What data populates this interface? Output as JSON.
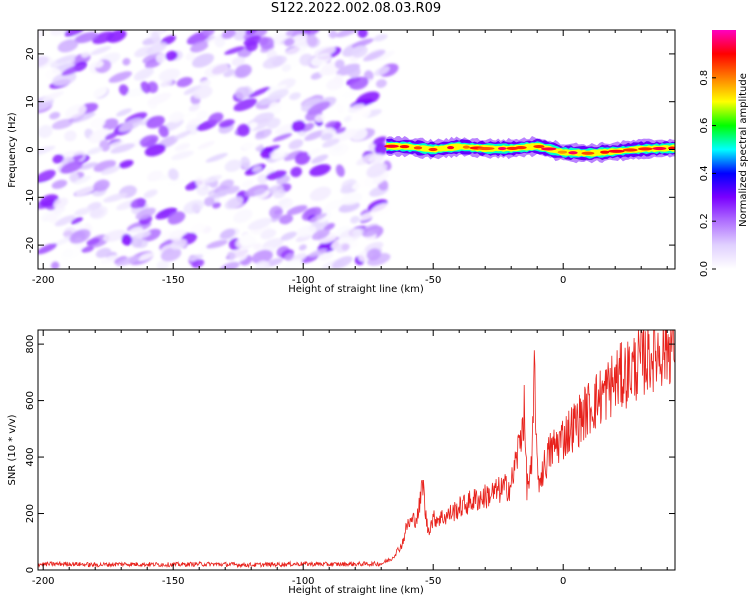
{
  "page": {
    "title": "S122.2022.002.08.03.R09"
  },
  "chart_data": [
    {
      "type": "heatmap",
      "xlabel": "Height of straight line (km)",
      "ylabel": "Frequency (Hz)",
      "xlim": [
        -202,
        43
      ],
      "ylim": [
        -25,
        25
      ],
      "x_ticks": [
        -200,
        -150,
        -100,
        -50,
        0
      ],
      "x_tick_labels": [
        "-200",
        "-150",
        "-100",
        "-50",
        "0"
      ],
      "y_ticks": [
        20,
        10,
        0,
        -10,
        -20
      ],
      "y_tick_labels": [
        "20",
        "10",
        "0",
        "-10",
        "-20"
      ],
      "noise_region": {
        "x_start": -202,
        "x_end": -67,
        "freq_range": [
          -25,
          25
        ],
        "peak_amplitude": 0.3
      },
      "signal_onset_km": -67,
      "signal_track": {
        "x": [
          -68,
          -60,
          -50,
          -40,
          -30,
          -20,
          -10,
          0,
          10,
          20,
          30,
          43
        ],
        "freq": [
          0.7,
          0.6,
          0.0,
          0.6,
          0.2,
          0.2,
          0.7,
          -0.6,
          -0.8,
          -0.4,
          0.1,
          0.3
        ],
        "peak_amplitude": 0.95
      },
      "colorbar": {
        "label": "Normalized spectral amplitude",
        "range": [
          0,
          1
        ],
        "ticks": [
          0.0,
          0.2,
          0.4,
          0.6,
          0.8
        ],
        "tick_labels": [
          "0.0",
          "0.2",
          "0.4",
          "0.6",
          "0.8"
        ],
        "colormap": [
          "#ffffff",
          "#e0d0ff",
          "#b070ff",
          "#7a00ff",
          "#0000ff",
          "#00ffff",
          "#00ff00",
          "#ffff00",
          "#ff8000",
          "#ff0000",
          "#ff00c0"
        ]
      },
      "grid": false,
      "legend": "none"
    },
    {
      "type": "line",
      "xlabel": "Height of straight line (km)",
      "ylabel": "SNR (10 * v/v)",
      "xlim": [
        -202,
        43
      ],
      "ylim": [
        0,
        850
      ],
      "x_ticks": [
        -200,
        -150,
        -100,
        -50,
        0
      ],
      "x_tick_labels": [
        "-200",
        "-150",
        "-100",
        "-50",
        "0"
      ],
      "y_ticks": [
        0,
        200,
        400,
        600,
        800
      ],
      "y_tick_labels": [
        "0",
        "200",
        "400",
        "600",
        "800"
      ],
      "color": "#e8221c",
      "grid": false,
      "legend": "none",
      "series": [
        {
          "x": [
            -202,
            -190,
            -180,
            -170,
            -160,
            -150,
            -140,
            -130,
            -120,
            -110,
            -100,
            -90,
            -80,
            -70,
            -66,
            -62,
            -60,
            -58,
            -56,
            -55,
            -54,
            -53,
            -52,
            -50,
            -45,
            -40,
            -35,
            -30,
            -25,
            -20,
            -17,
            -15,
            -14,
            -13,
            -12,
            -11,
            -10,
            -9,
            -8,
            -5,
            0,
            5,
            10,
            15,
            20,
            25,
            30,
            35,
            40,
            43
          ],
          "values": [
            20,
            22,
            18,
            21,
            20,
            19,
            21,
            20,
            18,
            20,
            22,
            20,
            21,
            22,
            40,
            90,
            160,
            175,
            190,
            240,
            320,
            200,
            140,
            180,
            190,
            220,
            245,
            260,
            280,
            300,
            440,
            560,
            300,
            320,
            360,
            740,
            330,
            320,
            350,
            420,
            470,
            520,
            575,
            620,
            670,
            700,
            740,
            770,
            790,
            810
          ]
        }
      ]
    }
  ]
}
